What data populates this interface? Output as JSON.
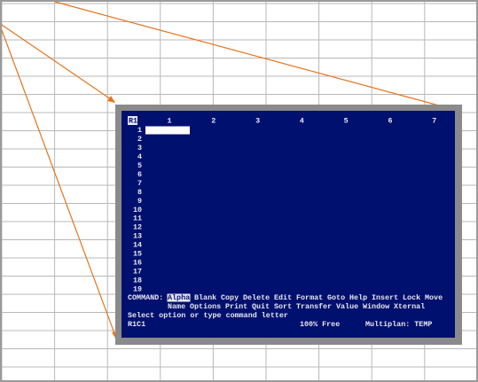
{
  "screen": {
    "corner_label": "R1",
    "columns": [
      "1",
      "2",
      "3",
      "4",
      "5",
      "6",
      "7"
    ],
    "rows": [
      "1",
      "2",
      "3",
      "4",
      "5",
      "6",
      "7",
      "8",
      "9",
      "10",
      "11",
      "12",
      "13",
      "14",
      "15",
      "16",
      "17",
      "18",
      "19"
    ],
    "command_label": "COMMAND:",
    "commands_line1": [
      "Alpha",
      "Blank",
      "Copy",
      "Delete",
      "Edit",
      "Format",
      "Goto",
      "Help",
      "Insert",
      "Lock",
      "Move"
    ],
    "commands_line2": [
      "Name",
      "Options",
      "Print",
      "Quit",
      "Sort",
      "Transfer",
      "Value",
      "Window",
      "Xternal"
    ],
    "prompt": "Select option or type command letter",
    "status_cell": "R1C1",
    "status_free": "100% Free",
    "status_program": "Multiplan: TEMP"
  }
}
